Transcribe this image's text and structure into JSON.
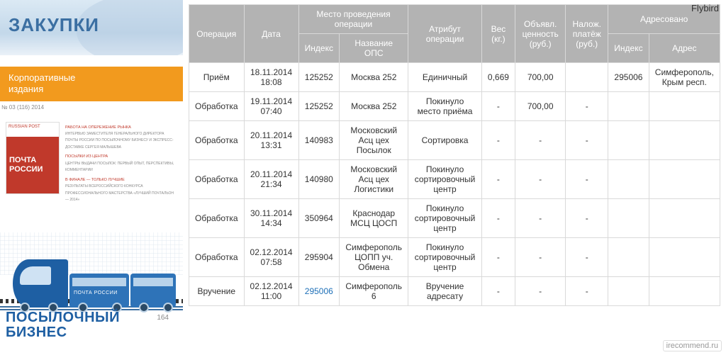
{
  "watermark_top": "Flybird",
  "watermark_bottom": "irecommend.ru",
  "sidebar": {
    "zakupki_title": "ЗАКУПКИ",
    "corp_line1": "Корпоративные",
    "corp_line2": "издания",
    "mag_issue": "№ 03 (116) 2014",
    "mag_brand_small": "RUSSIAN POST",
    "mag_brand_line1": "ПОЧТА",
    "mag_brand_line2": "РОССИИ",
    "mag_head_a": "РАБОТА НА ОПЕРЕЖЕНИЕ РЫНКА",
    "mag_body_a": "ИНТЕРВЬЮ ЗАМЕСТИТЕЛЯ ГЕНЕРАЛЬНОГО ДИРЕКТОРА ПОЧТЫ РОССИИ ПО ПОСЫЛОЧНОМУ БИЗНЕСУ И ЭКСПРЕСС-ДОСТАВКЕ СЕРГЕЯ МАЛЫШЕВА",
    "mag_head_b": "ПОСЫЛКИ ИЗ ЦЕНТРА",
    "mag_body_b": "ЦЕНТРЫ ВЫДАЧИ ПОСЫЛОК: ПЕРВЫЙ ОПЫТ, ПЕРСПЕКТИВЫ, КОММЕНТАРИИ",
    "mag_head_c": "В ФИНАЛЕ — ТОЛЬКО ЛУЧШИЕ",
    "mag_body_c": "РЕЗУЛЬТАТЫ ВСЕРОССИЙСКОГО КОНКУРСА ПРОФЕССИОНАЛЬНОГО МАСТЕРСТВА «ЛУЧШИЙ ПОЧТАЛЬОН — 2014»",
    "wagon_label": "ПОЧТА РОССИИ",
    "posyl_line1": "ПОСЫЛОЧНЫЙ",
    "posyl_line2": "БИЗНЕС",
    "km_marker": "164"
  },
  "table": {
    "headers": {
      "operation": "Операция",
      "date": "Дата",
      "place_group": "Место проведения операции",
      "place_index": "Индекс",
      "place_name": "Название ОПС",
      "attribute": "Атрибут операции",
      "weight": "Вес (кг.)",
      "declared": "Объявл. ценность (руб.)",
      "cod": "Налож. платёж (руб.)",
      "addr_group": "Адресовано",
      "addr_index": "Индекс",
      "addr_addr": "Адрес"
    },
    "rows": [
      {
        "op": "Приём",
        "date": "18.11.2014 18:08",
        "pidx": "125252",
        "pname": "Москва 252",
        "attr": "Единичный",
        "w": "0,669",
        "decl": "700,00",
        "cod": "",
        "aidx": "295006",
        "aaddr": "Симферополь, Крым респ."
      },
      {
        "op": "Обработка",
        "date": "19.11.2014 07:40",
        "pidx": "125252",
        "pname": "Москва 252",
        "attr": "Покинуло место приёма",
        "w": "-",
        "decl": "700,00",
        "cod": "-",
        "aidx": "",
        "aaddr": ""
      },
      {
        "op": "Обработка",
        "date": "20.11.2014 13:31",
        "pidx": "140983",
        "pname": "Московский Асц цех Посылок",
        "attr": "Сортировка",
        "w": "-",
        "decl": "-",
        "cod": "-",
        "aidx": "",
        "aaddr": ""
      },
      {
        "op": "Обработка",
        "date": "20.11.2014 21:34",
        "pidx": "140980",
        "pname": "Московский Асц цех Логистики",
        "attr": "Покинуло сортировочный центр",
        "w": "-",
        "decl": "-",
        "cod": "-",
        "aidx": "",
        "aaddr": ""
      },
      {
        "op": "Обработка",
        "date": "30.11.2014 14:34",
        "pidx": "350964",
        "pname": "Краснодар МСЦ ЦОСП",
        "attr": "Покинуло сортировочный центр",
        "w": "-",
        "decl": "-",
        "cod": "-",
        "aidx": "",
        "aaddr": ""
      },
      {
        "op": "Обработка",
        "date": "02.12.2014 07:58",
        "pidx": "295904",
        "pname": "Симферополь ЦОПП уч. Обмена",
        "attr": "Покинуло сортировочный центр",
        "w": "-",
        "decl": "-",
        "cod": "-",
        "aidx": "",
        "aaddr": ""
      },
      {
        "op": "Вручение",
        "date": "02.12.2014 11:00",
        "pidx": "295006",
        "pidx_link": true,
        "pname": "Симферополь 6",
        "attr": "Вручение адресату",
        "w": "-",
        "decl": "-",
        "cod": "-",
        "aidx": "",
        "aaddr": ""
      }
    ]
  },
  "colors": {
    "header_bg": "#b3b3b3",
    "header_fg": "#ffffff",
    "border": "#d9d9d9",
    "link": "#1d6fb7",
    "orange": "#f29a1e",
    "blue_brand": "#1e5fa3"
  }
}
